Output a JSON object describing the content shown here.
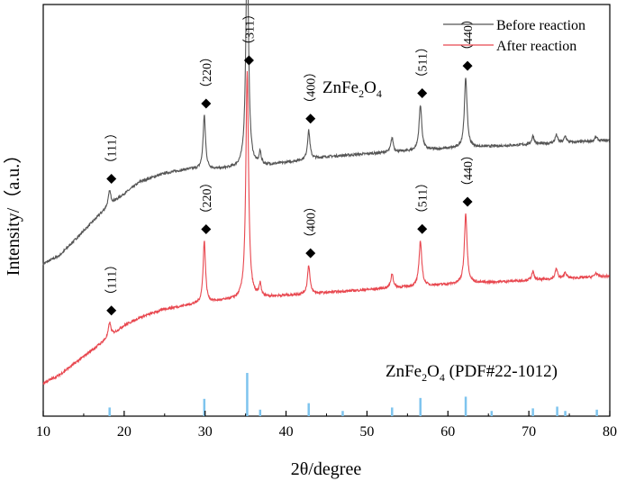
{
  "chart_data": {
    "type": "line",
    "xlabel": "2θ/degree",
    "ylabel": "Intensity/（a.u.）",
    "xlim": [
      10,
      80
    ],
    "xticks": [
      10,
      20,
      30,
      40,
      50,
      60,
      70,
      80
    ],
    "yticks_shown": false,
    "grid": false,
    "legend": {
      "placement": "top-right",
      "entries": [
        {
          "label": "Before reaction",
          "color": "#555555"
        },
        {
          "label": "After reaction",
          "color": "#e8474f"
        }
      ]
    },
    "annotations": {
      "phase_label_main": "ZnFe",
      "phase_sub2": "2",
      "phase_o": "O",
      "phase_sub4": "4",
      "ref_label_suffix": " (PDF#22-1012)"
    },
    "series": [
      {
        "name": "Before reaction",
        "color": "#555555",
        "baseline": [
          [
            10,
            0.37
          ],
          [
            12,
            0.39
          ],
          [
            14,
            0.43
          ],
          [
            16,
            0.47
          ],
          [
            18,
            0.51
          ],
          [
            20,
            0.54
          ],
          [
            22,
            0.57
          ],
          [
            25,
            0.59
          ],
          [
            28,
            0.6
          ],
          [
            32,
            0.6
          ],
          [
            38,
            0.61
          ],
          [
            45,
            0.63
          ],
          [
            52,
            0.64
          ],
          [
            60,
            0.65
          ],
          [
            70,
            0.66
          ],
          [
            80,
            0.67
          ]
        ],
        "peaks": [
          {
            "x": 18.2,
            "height": 0.035,
            "width": 0.18
          },
          {
            "x": 29.9,
            "height": 0.13,
            "width": 0.18
          },
          {
            "x": 35.2,
            "height": 0.55,
            "width": 0.2
          },
          {
            "x": 36.8,
            "height": 0.03,
            "width": 0.15
          },
          {
            "x": 42.8,
            "height": 0.07,
            "width": 0.18
          },
          {
            "x": 53.1,
            "height": 0.035,
            "width": 0.18
          },
          {
            "x": 56.6,
            "height": 0.11,
            "width": 0.2
          },
          {
            "x": 62.2,
            "height": 0.17,
            "width": 0.2
          },
          {
            "x": 70.5,
            "height": 0.02,
            "width": 0.18
          },
          {
            "x": 73.4,
            "height": 0.02,
            "width": 0.18
          },
          {
            "x": 74.5,
            "height": 0.015,
            "width": 0.18
          },
          {
            "x": 78.3,
            "height": 0.01,
            "width": 0.18
          }
        ],
        "markers": [
          {
            "x": 18.2,
            "hkl": "（111）"
          },
          {
            "x": 29.9,
            "hkl": "（220）"
          },
          {
            "x": 35.2,
            "hkl": "（311）"
          },
          {
            "x": 42.8,
            "hkl": "（400）"
          },
          {
            "x": 56.6,
            "hkl": "（511）"
          },
          {
            "x": 62.2,
            "hkl": "（440）"
          }
        ]
      },
      {
        "name": "After reaction",
        "color": "#e8474f",
        "baseline": [
          [
            10,
            0.08
          ],
          [
            12,
            0.1
          ],
          [
            14,
            0.13
          ],
          [
            16,
            0.16
          ],
          [
            18,
            0.19
          ],
          [
            20,
            0.22
          ],
          [
            22,
            0.24
          ],
          [
            25,
            0.26
          ],
          [
            28,
            0.27
          ],
          [
            32,
            0.28
          ],
          [
            38,
            0.29
          ],
          [
            45,
            0.3
          ],
          [
            52,
            0.31
          ],
          [
            60,
            0.32
          ],
          [
            70,
            0.33
          ],
          [
            80,
            0.34
          ]
        ],
        "peaks": [
          {
            "x": 18.2,
            "height": 0.035,
            "width": 0.18
          },
          {
            "x": 29.9,
            "height": 0.15,
            "width": 0.18
          },
          {
            "x": 35.2,
            "height": 0.55,
            "width": 0.2
          },
          {
            "x": 36.8,
            "height": 0.03,
            "width": 0.15
          },
          {
            "x": 42.8,
            "height": 0.07,
            "width": 0.18
          },
          {
            "x": 53.1,
            "height": 0.035,
            "width": 0.18
          },
          {
            "x": 56.6,
            "height": 0.11,
            "width": 0.2
          },
          {
            "x": 62.2,
            "height": 0.17,
            "width": 0.2
          },
          {
            "x": 70.5,
            "height": 0.02,
            "width": 0.18
          },
          {
            "x": 73.4,
            "height": 0.025,
            "width": 0.18
          },
          {
            "x": 74.5,
            "height": 0.015,
            "width": 0.18
          },
          {
            "x": 78.3,
            "height": 0.01,
            "width": 0.18
          }
        ],
        "markers": [
          {
            "x": 18.2,
            "hkl": "（111）"
          },
          {
            "x": 29.9,
            "hkl": "（220）"
          },
          {
            "x": 35.2,
            "hkl": "（311）"
          },
          {
            "x": 42.8,
            "hkl": "（400）"
          },
          {
            "x": 56.6,
            "hkl": "（511）"
          },
          {
            "x": 62.2,
            "hkl": "（440）"
          }
        ]
      }
    ],
    "reference_pattern": {
      "color": "#7ec4ee",
      "lines": [
        {
          "x": 18.2,
          "intensity": 0.2
        },
        {
          "x": 29.9,
          "intensity": 0.4
        },
        {
          "x": 35.2,
          "intensity": 1.0
        },
        {
          "x": 36.8,
          "intensity": 0.15
        },
        {
          "x": 42.8,
          "intensity": 0.3
        },
        {
          "x": 47.0,
          "intensity": 0.12
        },
        {
          "x": 53.1,
          "intensity": 0.2
        },
        {
          "x": 56.6,
          "intensity": 0.42
        },
        {
          "x": 62.2,
          "intensity": 0.45
        },
        {
          "x": 65.4,
          "intensity": 0.12
        },
        {
          "x": 70.5,
          "intensity": 0.18
        },
        {
          "x": 73.5,
          "intensity": 0.22
        },
        {
          "x": 74.5,
          "intensity": 0.12
        },
        {
          "x": 78.4,
          "intensity": 0.15
        }
      ]
    }
  }
}
